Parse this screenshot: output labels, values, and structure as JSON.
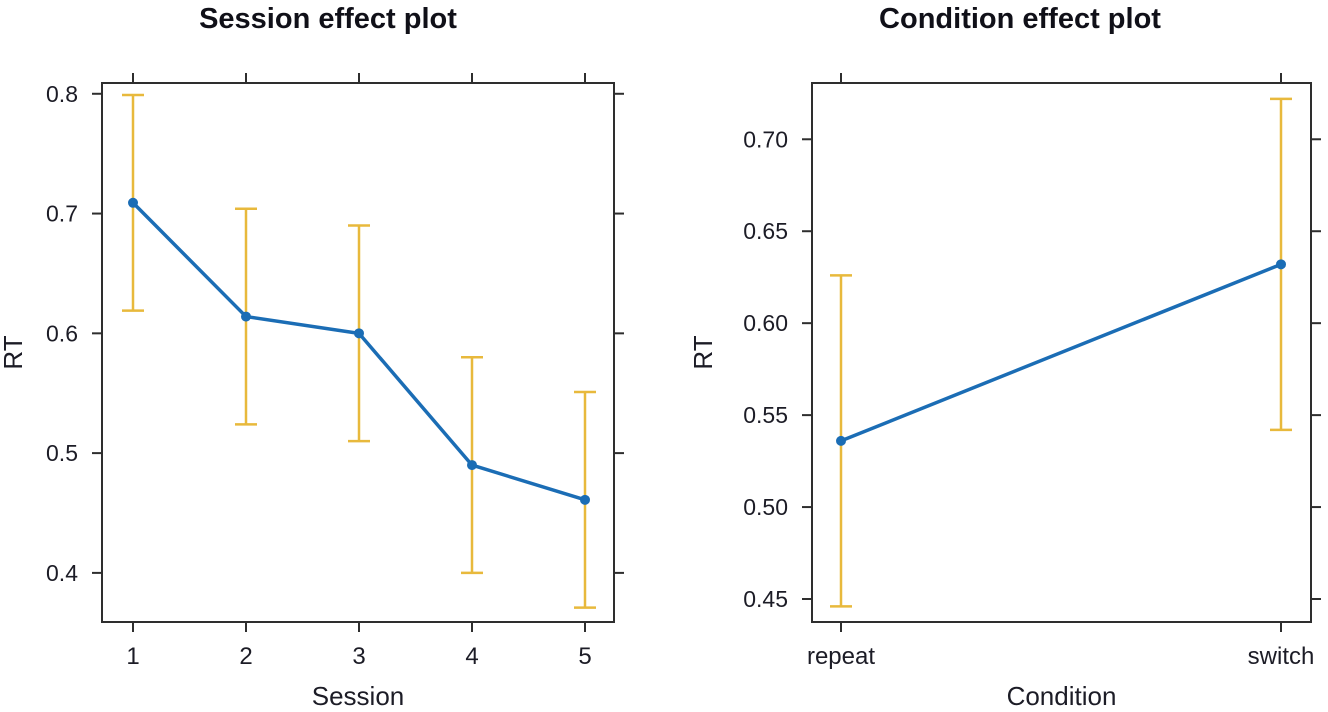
{
  "figure": {
    "background": "#ffffff",
    "description": "Two effect plots side by side showing fitted reaction time (RT) with confidence-interval error bars"
  },
  "chart_data": [
    {
      "type": "line",
      "title": "Session effect plot",
      "xlabel": "Session",
      "ylabel": "RT",
      "categories": [
        "1",
        "2",
        "3",
        "4",
        "5"
      ],
      "series": [
        {
          "name": "fitted RT",
          "values": [
            0.709,
            0.614,
            0.6,
            0.49,
            0.461
          ],
          "ci_lower": [
            0.619,
            0.524,
            0.51,
            0.4,
            0.371
          ],
          "ci_upper": [
            0.799,
            0.704,
            0.69,
            0.58,
            0.551
          ]
        }
      ],
      "yticks": [
        "0.8",
        "0.7",
        "0.6",
        "0.5",
        "0.4"
      ],
      "ytick_values": [
        0.8,
        0.7,
        0.6,
        0.5,
        0.4
      ],
      "ylim": [
        0.359,
        0.809
      ],
      "grid": false,
      "legend": null,
      "colors": {
        "line": "#1B6DB5",
        "point": "#1B6DB5",
        "error_bar": "#E8B93C",
        "axis": "#2E2E2E",
        "text": "#1C1C26",
        "title_text": "#101018"
      }
    },
    {
      "type": "line",
      "title": "Condition effect plot",
      "xlabel": "Condition",
      "ylabel": "RT",
      "categories": [
        "repeat",
        "switch"
      ],
      "series": [
        {
          "name": "fitted RT",
          "values": [
            0.536,
            0.632
          ],
          "ci_lower": [
            0.446,
            0.542
          ],
          "ci_upper": [
            0.626,
            0.722
          ]
        }
      ],
      "yticks": [
        "0.70",
        "0.65",
        "0.60",
        "0.55",
        "0.50",
        "0.45"
      ],
      "ytick_values": [
        0.7,
        0.65,
        0.6,
        0.55,
        0.5,
        0.45
      ],
      "ylim": [
        0.4375,
        0.7306
      ],
      "grid": false,
      "legend": null,
      "colors": {
        "line": "#1B6DB5",
        "point": "#1B6DB5",
        "error_bar": "#E8B93C",
        "axis": "#2E2E2E",
        "text": "#1C1C26",
        "title_text": "#101018"
      }
    }
  ]
}
